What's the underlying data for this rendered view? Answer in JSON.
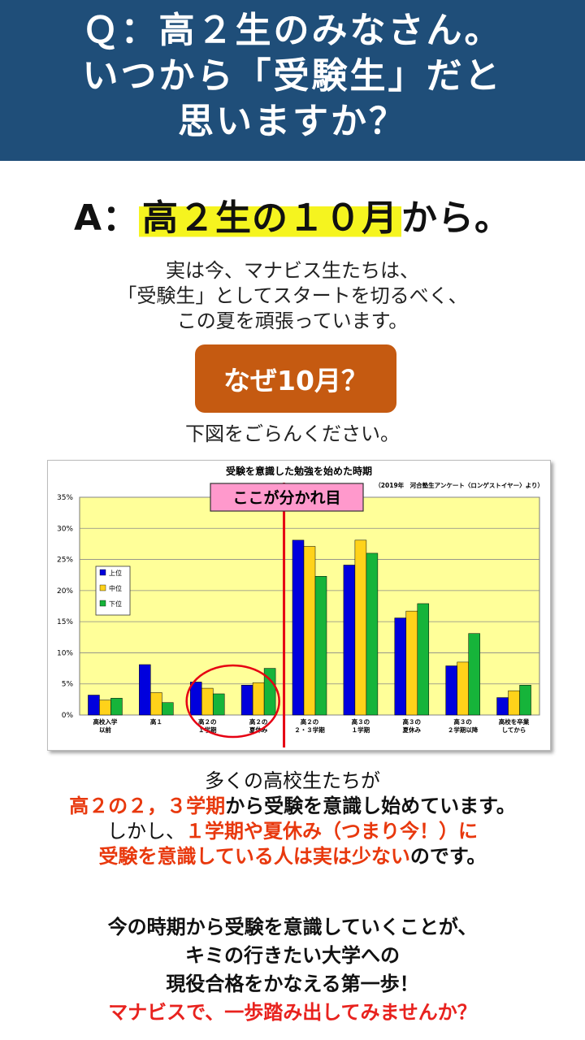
{
  "header": {
    "line1": "Ｑ：高２生のみなさん。",
    "line2": "いつから「受験生」だと",
    "line3": "思いますか？"
  },
  "answer": {
    "prefix": "A：",
    "highlight": "高２生の１０月",
    "suffix": "から。"
  },
  "intro": {
    "line1": "実は今、マナビス生たちは、",
    "line2": "「受験生」としてスタートを切るべく、",
    "line3": "この夏を頑張っています。"
  },
  "why_button": "なぜ10月？",
  "see_figure": "下図をごらんください。",
  "chart_data": {
    "type": "bar",
    "title": "受験を意識した勉強を始めた時期",
    "source": "（2019年　河合塾生アンケート〈ロンゲストイヤー〉より）",
    "callout": "ここが分かれ目",
    "categories": [
      [
        "高校入学",
        "以前"
      ],
      [
        "高１",
        ""
      ],
      [
        "高２の",
        "１学期"
      ],
      [
        "高２の",
        "夏休み"
      ],
      [
        "高２の",
        "２・３学期"
      ],
      [
        "高３の",
        "１学期"
      ],
      [
        "高３の",
        "夏休み"
      ],
      [
        "高３の",
        "２学期以降"
      ],
      [
        "高校を卒業",
        "してから"
      ]
    ],
    "series": [
      {
        "name": "上位",
        "color": "#0000dd",
        "values": [
          3.2,
          8.1,
          5.3,
          4.8,
          28.1,
          24.1,
          15.6,
          7.9,
          2.8
        ]
      },
      {
        "name": "中位",
        "color": "#ffd21a",
        "values": [
          2.4,
          3.6,
          4.3,
          5.2,
          27.1,
          28.1,
          16.7,
          8.5,
          3.9
        ]
      },
      {
        "name": "下位",
        "color": "#16b43a",
        "values": [
          2.7,
          2.0,
          3.4,
          7.5,
          22.3,
          26.0,
          17.9,
          13.1,
          4.8
        ]
      }
    ],
    "ylim": [
      0,
      35
    ],
    "yticks": [
      "0%",
      "5%",
      "10%",
      "15%",
      "20%",
      "25%",
      "30%",
      "35%"
    ],
    "grid": true,
    "legend": "left",
    "plot_bg": "#ffff99"
  },
  "body": {
    "line1": "多くの高校生たちが",
    "line2_red": "高２の２，３学期",
    "line2_rest": "から受験を意識し始めています。",
    "line3_pre": "しかし、",
    "line3_red": "１学期や夏休み（つまり今！）に",
    "line4_red": "受験を意識している人は実は少ない",
    "line4_rest": "のです。"
  },
  "closing": {
    "line1": "今の時期から受験を意識していくことが、",
    "line2": "キミの行きたい大学への",
    "line3": "現役合格をかなえる第一歩！",
    "line4": "マナビスで、一歩踏み出してみませんか？"
  }
}
